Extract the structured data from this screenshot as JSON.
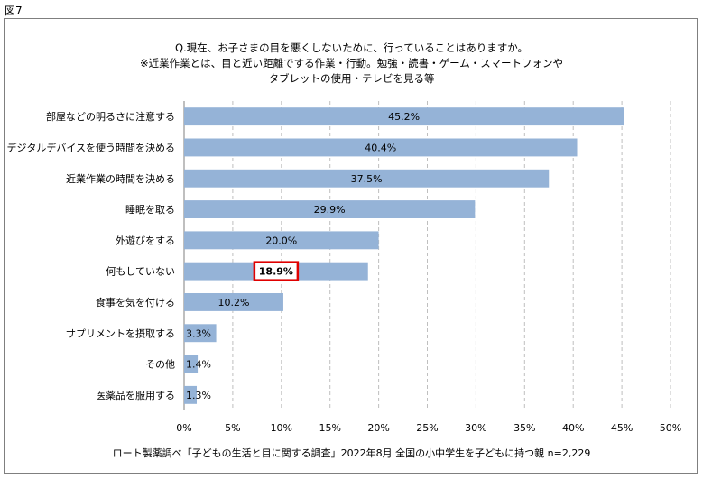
{
  "figure_label": "図7",
  "chart_data": {
    "type": "bar",
    "orientation": "horizontal",
    "title_lines": [
      "Q.現在、お子さまの目を悪くしないために、行っていることはありますか。",
      "※近業作業とは、目と近い距離でする作業・行動。勉強・読書・ゲーム・スマートフォンや",
      "タブレットの使用・テレビを見る等"
    ],
    "categories": [
      "部屋などの明るさに注意する",
      "デジタルデバイスを使う時間を決める",
      "近業作業の時間を決める",
      "睡眠を取る",
      "外遊びをする",
      "何もしていない",
      "食事を気を付ける",
      "サプリメントを摂取する",
      "その他",
      "医薬品を服用する"
    ],
    "values": [
      45.2,
      40.4,
      37.5,
      29.9,
      20.0,
      18.9,
      10.2,
      3.3,
      1.4,
      1.3
    ],
    "data_labels": [
      "45.2%",
      "40.4%",
      "37.5%",
      "29.9%",
      "20.0%",
      "18.9%",
      "10.2%",
      "3.3%",
      "1.4%",
      "1.3%"
    ],
    "highlight_index": 5,
    "xlim": [
      0,
      50
    ],
    "xticks": [
      "0%",
      "5%",
      "10%",
      "15%",
      "20%",
      "25%",
      "30%",
      "35%",
      "40%",
      "45%",
      "50%"
    ],
    "grid": "vertical dashed",
    "bar_color": "#95b3d7",
    "highlight_color": "#e00000",
    "source": "ロート製薬調べ「子どもの生活と目に関する調査」2022年8月 全国の小中学生を子どもに持つ親 n=2,229"
  }
}
